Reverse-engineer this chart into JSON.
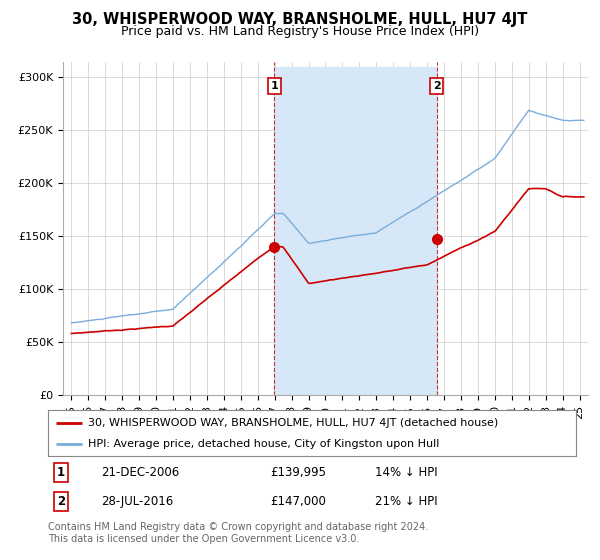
{
  "title": "30, WHISPERWOOD WAY, BRANSHOLME, HULL, HU7 4JT",
  "subtitle": "Price paid vs. HM Land Registry's House Price Index (HPI)",
  "ylabel_ticks": [
    "£0",
    "£50K",
    "£100K",
    "£150K",
    "£200K",
    "£250K",
    "£300K"
  ],
  "ytick_values": [
    0,
    50000,
    100000,
    150000,
    200000,
    250000,
    300000
  ],
  "ylim": [
    0,
    315000
  ],
  "xlim_start": 1994.5,
  "xlim_end": 2025.5,
  "sale1_date": 2006.97,
  "sale1_price": 139995,
  "sale1_label": "1",
  "sale2_date": 2016.57,
  "sale2_price": 147000,
  "sale2_label": "2",
  "red_line_color": "#cc0000",
  "blue_line_color": "#7aaddc",
  "shaded_color": "#d6e8f7",
  "grid_color": "#cccccc",
  "background_color": "#ffffff",
  "legend_line1": "30, WHISPERWOOD WAY, BRANSHOLME, HULL, HU7 4JT (detached house)",
  "legend_line2": "HPI: Average price, detached house, City of Kingston upon Hull",
  "ann_row1_date": "21-DEC-2006",
  "ann_row1_price": "£139,995",
  "ann_row1_pct": "14% ↓ HPI",
  "ann_row2_date": "28-JUL-2016",
  "ann_row2_price": "£147,000",
  "ann_row2_pct": "21% ↓ HPI",
  "footnote": "Contains HM Land Registry data © Crown copyright and database right 2024.\nThis data is licensed under the Open Government Licence v3.0."
}
